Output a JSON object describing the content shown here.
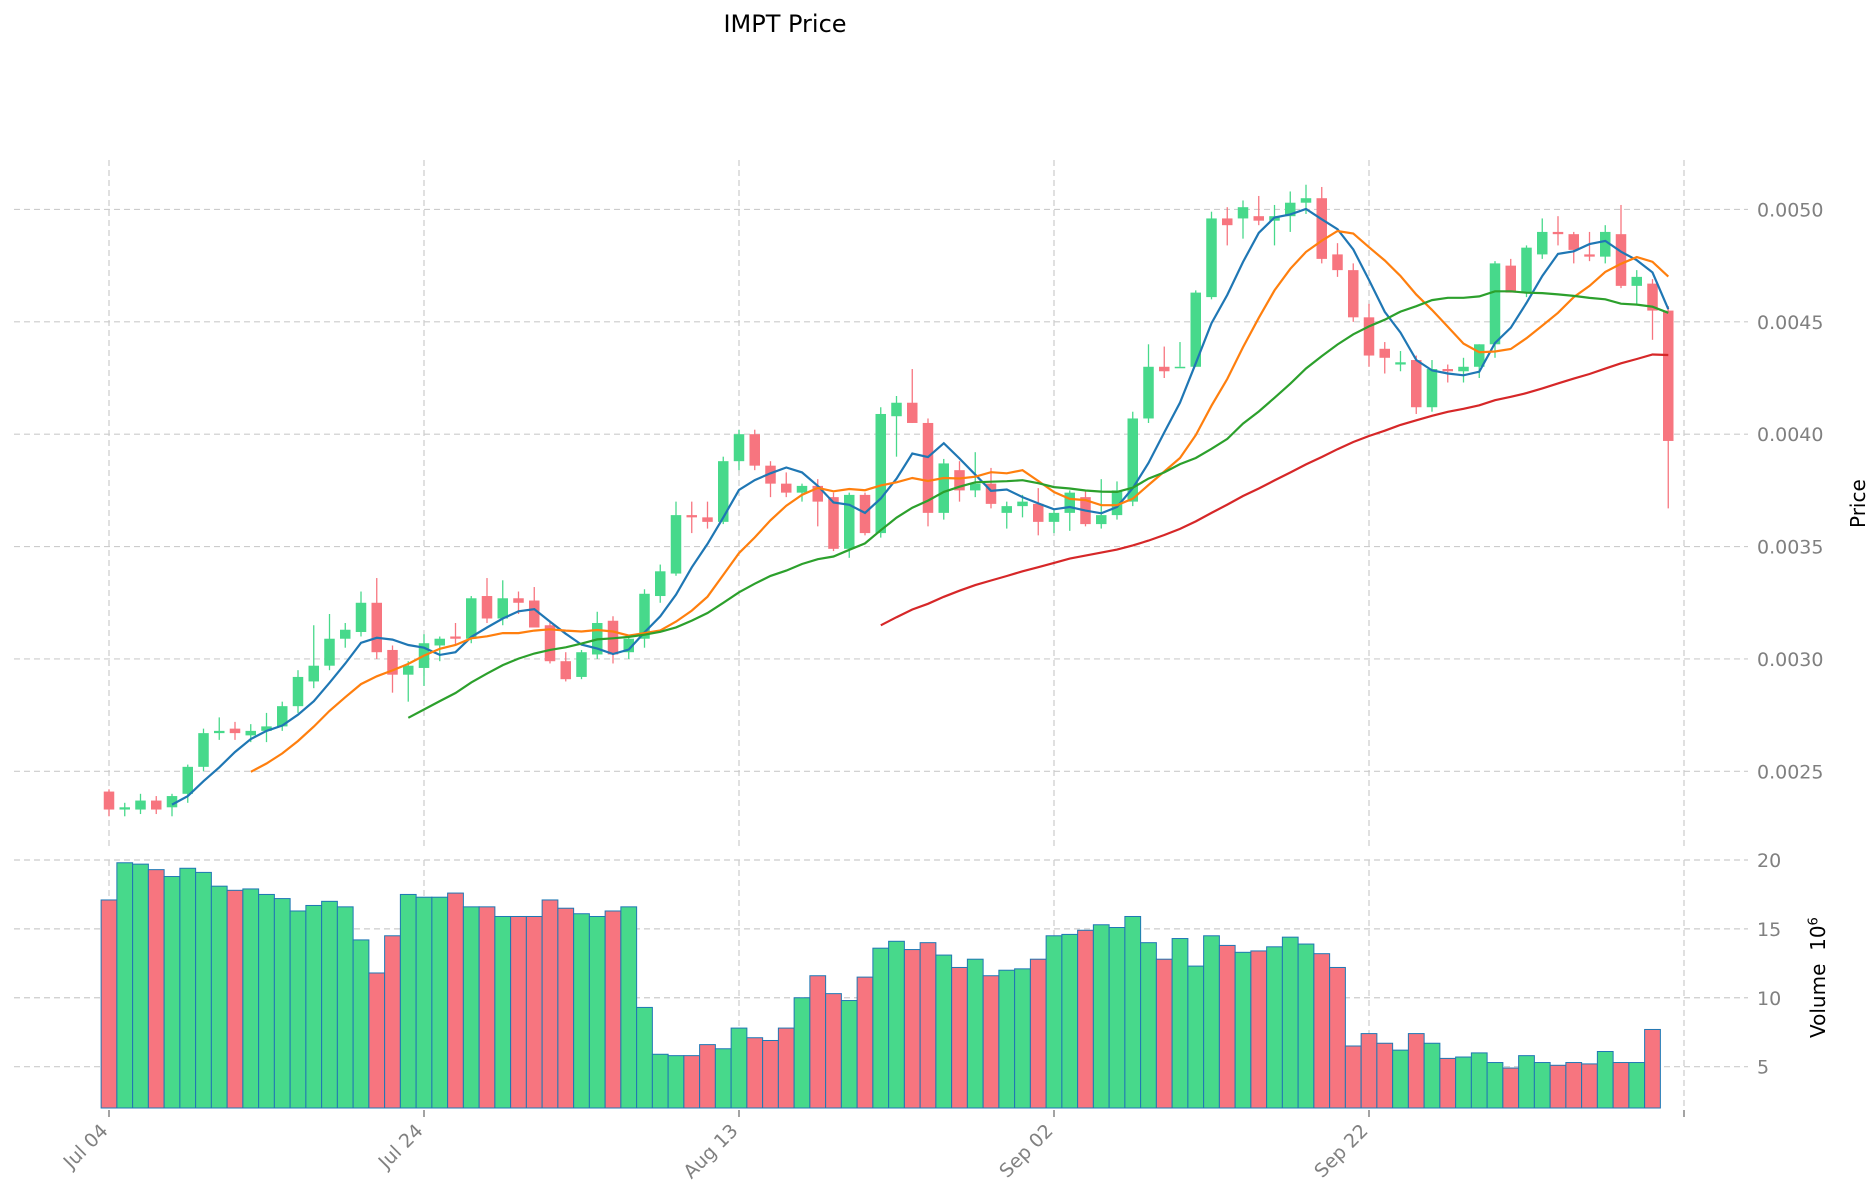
{
  "chart_data": {
    "type": "candlestick",
    "title": "IMPT Price",
    "ylabel_price": "Price",
    "ylabel_volume": "Volume",
    "volume_multiplier_label": "10",
    "volume_multiplier_exp": "6",
    "price_ylim": [
      0.00215,
      0.00522
    ],
    "volume_ylim": [
      2,
      20
    ],
    "price_ticks": [
      {
        "value": 0.0025,
        "label": "0.0025"
      },
      {
        "value": 0.003,
        "label": "0.0030"
      },
      {
        "value": 0.0035,
        "label": "0.0035"
      },
      {
        "value": 0.004,
        "label": "0.0040"
      },
      {
        "value": 0.0045,
        "label": "0.0045"
      },
      {
        "value": 0.005,
        "label": "0.0050"
      }
    ],
    "volume_ticks": [
      {
        "value": 5,
        "label": "5"
      },
      {
        "value": 10,
        "label": "10"
      },
      {
        "value": 15,
        "label": "15"
      },
      {
        "value": 20,
        "label": "20"
      }
    ],
    "x_ticks": [
      {
        "index": 0,
        "label": "Jul 04"
      },
      {
        "index": 20,
        "label": "Jul 24"
      },
      {
        "index": 40,
        "label": "Aug 13"
      },
      {
        "index": 60,
        "label": "Sep 02"
      },
      {
        "index": 80,
        "label": "Sep 22"
      },
      {
        "index": 100,
        "label": ""
      }
    ],
    "colors": {
      "up": "#47d98b",
      "down": "#f7757f",
      "edge": "#1f77b4",
      "ma5": "#1f77b4",
      "ma10": "#ff7f0e",
      "ma20": "#2ca02c",
      "ma50": "#d62728",
      "grid": "#cccccc"
    },
    "candles": [
      [
        0.00241,
        0.00242,
        0.0023,
        0.00233
      ],
      [
        0.00233,
        0.00236,
        0.0023,
        0.00234
      ],
      [
        0.00233,
        0.0024,
        0.00231,
        0.00237
      ],
      [
        0.00237,
        0.00239,
        0.00231,
        0.00233
      ],
      [
        0.00234,
        0.0024,
        0.0023,
        0.00239
      ],
      [
        0.0024,
        0.00253,
        0.00236,
        0.00252
      ],
      [
        0.00252,
        0.00269,
        0.0025,
        0.00267
      ],
      [
        0.00267,
        0.00274,
        0.00264,
        0.00268
      ],
      [
        0.00269,
        0.00272,
        0.00264,
        0.00267
      ],
      [
        0.00266,
        0.00271,
        0.00263,
        0.00268
      ],
      [
        0.00268,
        0.00276,
        0.00263,
        0.0027
      ],
      [
        0.0027,
        0.00281,
        0.00268,
        0.00279
      ],
      [
        0.00279,
        0.00295,
        0.00276,
        0.00292
      ],
      [
        0.0029,
        0.00315,
        0.00287,
        0.00297
      ],
      [
        0.00297,
        0.0032,
        0.00295,
        0.00309
      ],
      [
        0.00309,
        0.00316,
        0.00305,
        0.00313
      ],
      [
        0.00312,
        0.0033,
        0.0031,
        0.00325
      ],
      [
        0.00325,
        0.00336,
        0.003,
        0.00303
      ],
      [
        0.00304,
        0.00306,
        0.00285,
        0.00293
      ],
      [
        0.00293,
        0.00299,
        0.00281,
        0.00297
      ],
      [
        0.00296,
        0.00311,
        0.00288,
        0.00307
      ],
      [
        0.00306,
        0.0031,
        0.00299,
        0.00309
      ],
      [
        0.0031,
        0.00316,
        0.00306,
        0.00309
      ],
      [
        0.00309,
        0.00328,
        0.00307,
        0.00327
      ],
      [
        0.00328,
        0.00336,
        0.00316,
        0.00318
      ],
      [
        0.00318,
        0.00335,
        0.00315,
        0.00327
      ],
      [
        0.00327,
        0.0033,
        0.0032,
        0.00325
      ],
      [
        0.00326,
        0.00332,
        0.00314,
        0.00314
      ],
      [
        0.00315,
        0.00317,
        0.00298,
        0.00299
      ],
      [
        0.00299,
        0.00303,
        0.0029,
        0.00291
      ],
      [
        0.00292,
        0.00304,
        0.00291,
        0.00303
      ],
      [
        0.00302,
        0.00321,
        0.003,
        0.00316
      ],
      [
        0.00317,
        0.00319,
        0.00298,
        0.00302
      ],
      [
        0.00303,
        0.0031,
        0.003,
        0.00309
      ],
      [
        0.00309,
        0.00331,
        0.00305,
        0.00329
      ],
      [
        0.00328,
        0.00342,
        0.00325,
        0.00339
      ],
      [
        0.00338,
        0.0037,
        0.00337,
        0.00364
      ],
      [
        0.00364,
        0.0037,
        0.00356,
        0.00363
      ],
      [
        0.00363,
        0.0037,
        0.00358,
        0.00361
      ],
      [
        0.00361,
        0.0039,
        0.0036,
        0.00388
      ],
      [
        0.00388,
        0.00402,
        0.00384,
        0.004
      ],
      [
        0.004,
        0.00402,
        0.00384,
        0.00386
      ],
      [
        0.00386,
        0.00388,
        0.00372,
        0.00378
      ],
      [
        0.00378,
        0.00383,
        0.00372,
        0.00374
      ],
      [
        0.00374,
        0.00378,
        0.0037,
        0.00377
      ],
      [
        0.00377,
        0.0038,
        0.00359,
        0.0037
      ],
      [
        0.00372,
        0.00374,
        0.00348,
        0.00349
      ],
      [
        0.00349,
        0.00374,
        0.00345,
        0.00373
      ],
      [
        0.00373,
        0.00374,
        0.00355,
        0.00356
      ],
      [
        0.00356,
        0.00412,
        0.00354,
        0.00409
      ],
      [
        0.00408,
        0.00417,
        0.0039,
        0.00414
      ],
      [
        0.00414,
        0.00429,
        0.00405,
        0.00405
      ],
      [
        0.00405,
        0.00407,
        0.00359,
        0.00365
      ],
      [
        0.00365,
        0.00389,
        0.00362,
        0.00387
      ],
      [
        0.00384,
        0.00388,
        0.0037,
        0.00375
      ],
      [
        0.00375,
        0.00392,
        0.00372,
        0.00378
      ],
      [
        0.00378,
        0.00385,
        0.00367,
        0.00369
      ],
      [
        0.00365,
        0.0037,
        0.00358,
        0.00368
      ],
      [
        0.00368,
        0.00373,
        0.00363,
        0.0037
      ],
      [
        0.00369,
        0.00376,
        0.00355,
        0.00361
      ],
      [
        0.00361,
        0.00367,
        0.00356,
        0.00365
      ],
      [
        0.00365,
        0.00375,
        0.00357,
        0.00374
      ],
      [
        0.00372,
        0.00375,
        0.00359,
        0.0036
      ],
      [
        0.0036,
        0.0038,
        0.00358,
        0.00364
      ],
      [
        0.00364,
        0.00379,
        0.00362,
        0.00375
      ],
      [
        0.0037,
        0.0041,
        0.00368,
        0.00407
      ],
      [
        0.00407,
        0.0044,
        0.00405,
        0.0043
      ],
      [
        0.0043,
        0.00439,
        0.00425,
        0.00428
      ],
      [
        0.0043,
        0.00441,
        0.0043,
        0.0043
      ],
      [
        0.0043,
        0.00464,
        0.0043,
        0.00463
      ],
      [
        0.00461,
        0.00499,
        0.0046,
        0.00496
      ],
      [
        0.00496,
        0.00501,
        0.00484,
        0.00493
      ],
      [
        0.00496,
        0.00504,
        0.00487,
        0.00501
      ],
      [
        0.00497,
        0.00506,
        0.00493,
        0.00495
      ],
      [
        0.00495,
        0.00502,
        0.00484,
        0.00497
      ],
      [
        0.00497,
        0.00508,
        0.0049,
        0.00503
      ],
      [
        0.00503,
        0.00511,
        0.00498,
        0.00505
      ],
      [
        0.00505,
        0.0051,
        0.00476,
        0.00478
      ],
      [
        0.0048,
        0.00485,
        0.0047,
        0.00473
      ],
      [
        0.00473,
        0.00476,
        0.0045,
        0.00452
      ],
      [
        0.00452,
        0.00458,
        0.0043,
        0.00435
      ],
      [
        0.00438,
        0.00441,
        0.00427,
        0.00434
      ],
      [
        0.00431,
        0.00437,
        0.00428,
        0.00432
      ],
      [
        0.00433,
        0.00435,
        0.00409,
        0.00412
      ],
      [
        0.00412,
        0.00433,
        0.0041,
        0.00429
      ],
      [
        0.00429,
        0.00431,
        0.00423,
        0.00428
      ],
      [
        0.00428,
        0.00434,
        0.00423,
        0.0043
      ],
      [
        0.0043,
        0.0044,
        0.00425,
        0.0044
      ],
      [
        0.0044,
        0.00477,
        0.00434,
        0.00476
      ],
      [
        0.00475,
        0.00478,
        0.00463,
        0.00463
      ],
      [
        0.00463,
        0.00484,
        0.00461,
        0.00483
      ],
      [
        0.0048,
        0.00496,
        0.00478,
        0.0049
      ],
      [
        0.0049,
        0.00497,
        0.00484,
        0.00489
      ],
      [
        0.00489,
        0.0049,
        0.00476,
        0.00482
      ],
      [
        0.0048,
        0.0049,
        0.00477,
        0.00479
      ],
      [
        0.00479,
        0.00493,
        0.00476,
        0.0049
      ],
      [
        0.00489,
        0.00502,
        0.00465,
        0.00466
      ],
      [
        0.00466,
        0.00473,
        0.00458,
        0.0047
      ],
      [
        0.00467,
        0.00469,
        0.00442,
        0.00455
      ],
      [
        0.00455,
        0.00457,
        0.00367,
        0.00397
      ]
    ],
    "volumes": [
      17.1,
      19.8,
      19.7,
      19.3,
      18.8,
      19.4,
      19.1,
      18.1,
      17.8,
      17.9,
      17.5,
      17.2,
      16.3,
      16.7,
      17.0,
      16.6,
      14.2,
      11.8,
      14.5,
      17.5,
      17.3,
      17.3,
      17.6,
      16.6,
      16.6,
      15.9,
      15.9,
      15.9,
      17.1,
      16.5,
      16.1,
      15.9,
      16.3,
      16.6,
      9.3,
      5.9,
      5.8,
      5.8,
      6.6,
      6.3,
      7.8,
      7.1,
      6.9,
      7.8,
      10.0,
      11.6,
      10.3,
      9.8,
      11.5,
      13.6,
      14.1,
      13.5,
      14.0,
      13.1,
      12.2,
      12.8,
      11.6,
      12.0,
      12.1,
      12.8,
      14.5,
      14.6,
      14.9,
      15.3,
      15.1,
      15.9,
      14.0,
      12.8,
      14.3,
      12.3,
      14.5,
      13.8,
      13.3,
      13.4,
      13.7,
      14.4,
      13.9,
      13.2,
      12.2,
      6.5,
      7.4,
      6.7,
      6.2,
      7.4,
      6.7,
      5.6,
      5.7,
      6.0,
      5.3,
      4.9,
      5.8,
      5.3,
      5.1,
      5.3,
      5.2,
      6.1,
      5.3,
      5.3,
      7.7
    ]
  }
}
